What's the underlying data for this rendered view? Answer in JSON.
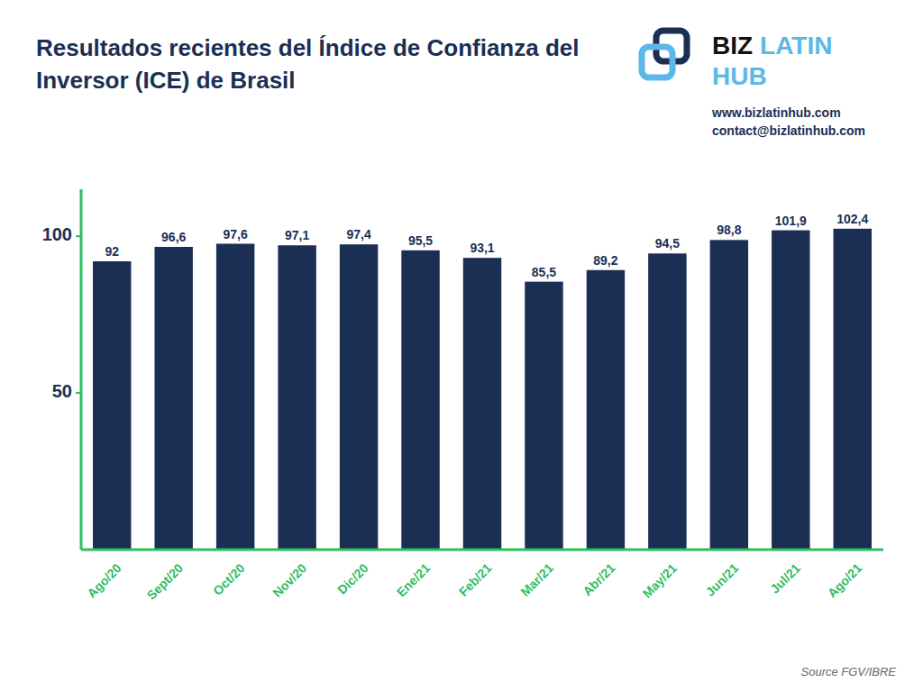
{
  "chart_data": {
    "type": "bar",
    "title": "Resultados recientes del Índice de Confianza del Inversor (ICE) de Brasil",
    "categories": [
      "Ago/20",
      "Sept/20",
      "Oct/20",
      "Nov/20",
      "Dic/20",
      "Ene/21",
      "Feb/21",
      "Mar/21",
      "Abr/21",
      "May/21",
      "Jun/21",
      "Jul/21",
      "Ago/21"
    ],
    "values": [
      92.0,
      96.6,
      97.6,
      97.1,
      97.4,
      95.5,
      93.1,
      85.5,
      89.2,
      94.5,
      98.8,
      101.9,
      102.4
    ],
    "value_labels": [
      "92",
      "96,6",
      "97,6",
      "97,1",
      "97,4",
      "95,5",
      "93,1",
      "85,5",
      "89,2",
      "94,5",
      "98,8",
      "101,9",
      "102,4"
    ],
    "data_labels": true,
    "color": "#1b2f55",
    "ylim": [
      0,
      115
    ],
    "yticks": [
      50,
      100
    ],
    "grid": false,
    "annotations": [
      "BIZ",
      "LATIN",
      "HUB",
      "www.bizlatinhub.com",
      "contact@bizlatinhub.com",
      "Source FGV/IBRE"
    ]
  }
}
